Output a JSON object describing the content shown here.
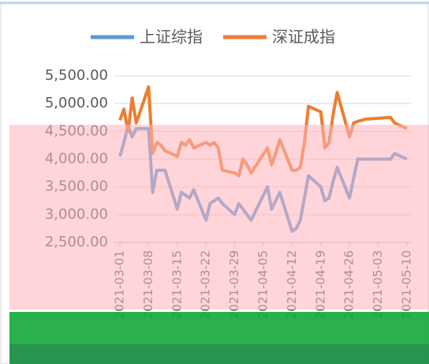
{
  "chart_data": {
    "type": "line",
    "x": [
      "2021-03-01",
      "2021-03-02",
      "2021-03-03",
      "2021-03-04",
      "2021-03-05",
      "2021-03-08",
      "2021-03-09",
      "2021-03-10",
      "2021-03-11",
      "2021-03-12",
      "2021-03-15",
      "2021-03-16",
      "2021-03-17",
      "2021-03-18",
      "2021-03-19",
      "2021-03-22",
      "2021-03-23",
      "2021-03-24",
      "2021-03-25",
      "2021-03-26",
      "2021-03-29",
      "2021-03-30",
      "2021-03-31",
      "2021-04-01",
      "2021-04-02",
      "2021-04-06",
      "2021-04-07",
      "2021-04-08",
      "2021-04-09",
      "2021-04-12",
      "2021-04-13",
      "2021-04-14",
      "2021-04-15",
      "2021-04-16",
      "2021-04-19",
      "2021-04-20",
      "2021-04-21",
      "2021-04-22",
      "2021-04-23",
      "2021-04-26",
      "2021-04-27",
      "2021-04-28",
      "2021-04-29",
      "2021-04-30",
      "2021-05-06",
      "2021-05-07",
      "2021-05-10"
    ],
    "series": [
      {
        "name": "上证综指",
        "color": "#5b9bd5",
        "values": [
          4050,
          4300,
          4600,
          4400,
          4550,
          4550,
          3400,
          3800,
          3800,
          3800,
          3100,
          3400,
          3350,
          3300,
          3450,
          2900,
          3200,
          3250,
          3300,
          3200,
          3000,
          3200,
          3100,
          3000,
          2900,
          3500,
          3100,
          3250,
          3400,
          2700,
          2750,
          2900,
          3300,
          3700,
          3500,
          3250,
          3300,
          3600,
          3850,
          3300,
          3650,
          4000,
          4000,
          4000,
          4000,
          4100,
          4000
        ]
      },
      {
        "name": "深证成指",
        "color": "#ed7d31",
        "values": [
          4700,
          4900,
          4500,
          5100,
          4650,
          5300,
          4100,
          4300,
          4250,
          4150,
          4050,
          4300,
          4250,
          4350,
          4200,
          4300,
          4250,
          4300,
          4200,
          3800,
          3750,
          3700,
          4000,
          3900,
          3750,
          4200,
          3900,
          4100,
          4350,
          3800,
          3800,
          3850,
          4300,
          4950,
          4850,
          4200,
          4300,
          4800,
          5200,
          4400,
          4650,
          4680,
          4700,
          4720,
          4750,
          4650,
          4550
        ]
      }
    ],
    "xlim": [
      "2021-03-01",
      "2021-05-10"
    ],
    "xticks": [
      "2021-03-01",
      "2021-03-08",
      "2021-03-15",
      "2021-03-22",
      "2021-03-29",
      "2021-04-05",
      "2021-04-12",
      "2021-04-19",
      "2021-04-26",
      "2021-05-03",
      "2021-05-10"
    ],
    "ylim": [
      2500,
      5500
    ],
    "yticks": [
      {
        "value": 2500,
        "label": "2,500.00"
      },
      {
        "value": 3000,
        "label": "3,000.00"
      },
      {
        "value": 3500,
        "label": "3,500.00"
      },
      {
        "value": 4000,
        "label": "4,000.00"
      },
      {
        "value": 4500,
        "label": "4,500.00"
      },
      {
        "value": 5000,
        "label": "5,000.00"
      },
      {
        "value": 5500,
        "label": "5,500.00"
      }
    ],
    "grid": true,
    "legend": "top"
  }
}
